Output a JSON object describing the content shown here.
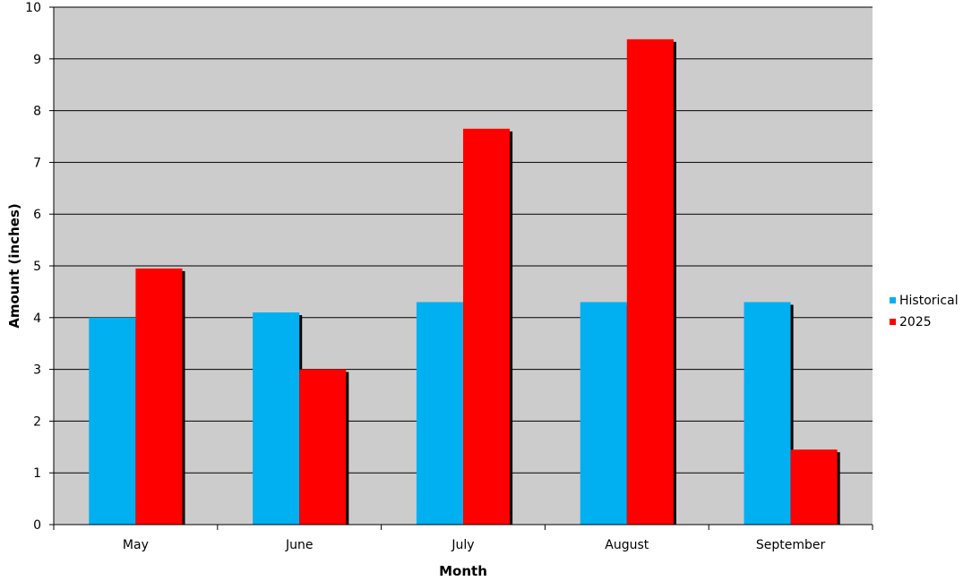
{
  "chart_data": {
    "type": "bar",
    "title": "",
    "xlabel": "Month",
    "ylabel": "Amount (inches)",
    "categories": [
      "May",
      "June",
      "July",
      "August",
      "September"
    ],
    "series": [
      {
        "name": "Historical",
        "color": "#00b0f0",
        "values": [
          4.0,
          4.1,
          4.3,
          4.3,
          4.3
        ]
      },
      {
        "name": "2025",
        "color": "#ff0000",
        "values": [
          4.95,
          3.0,
          7.65,
          9.38,
          1.45
        ]
      }
    ],
    "ylim": [
      0,
      10
    ],
    "yticks": [
      "0",
      "1",
      "2",
      "3",
      "4",
      "5",
      "6",
      "7",
      "8",
      "9",
      "10"
    ],
    "grid": true,
    "plot_background": "#cccccc",
    "legend_position": "right"
  }
}
